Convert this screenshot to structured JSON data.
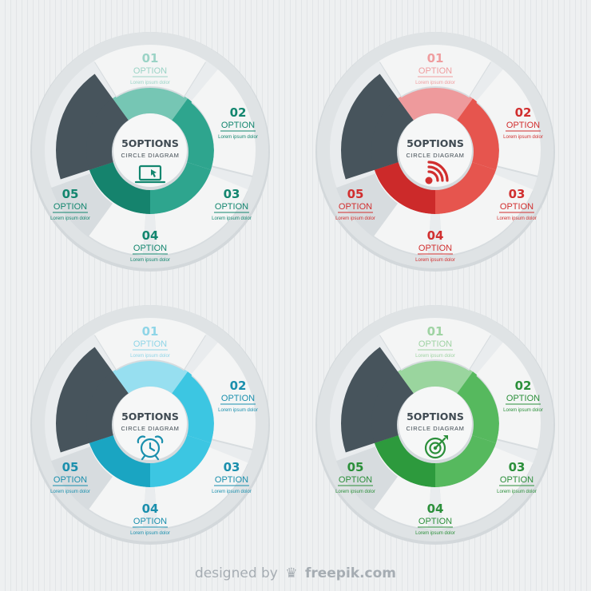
{
  "diagrams": [
    {
      "title": "5OPTIONS",
      "subtitle": "CIRCLE DIAGRAM",
      "icon": "laptop-icon",
      "colors": {
        "light": "#76c6b4",
        "mid": "#2ea58e",
        "dark": "#15836d",
        "text": "#13866f",
        "muted": "#9bd3c6"
      },
      "options": [
        {
          "number": "01",
          "label": "OPTION",
          "desc": "Lorem ipsum dolor",
          "style": "muted"
        },
        {
          "number": "02",
          "label": "OPTION",
          "desc": "Lorem ipsum dolor",
          "style": "normal"
        },
        {
          "number": "03",
          "label": "OPTION",
          "desc": "Lorem ipsum dolor",
          "style": "normal"
        },
        {
          "number": "04",
          "label": "OPTION",
          "desc": "Lorem ipsum dolor",
          "style": "normal"
        },
        {
          "number": "05",
          "label": "OPTION",
          "desc": "Lorem ipsum dolor",
          "style": "normal"
        }
      ]
    },
    {
      "title": "5OPTIONS",
      "subtitle": "CIRCLE DIAGRAM",
      "icon": "wifi-signal-icon",
      "colors": {
        "light": "#ee9a9c",
        "mid": "#e6554e",
        "dark": "#cc2a2a",
        "text": "#d12f2f",
        "muted": "#ef9d9f"
      },
      "options": [
        {
          "number": "01",
          "label": "OPTION",
          "desc": "Lorem ipsum dolor",
          "style": "muted"
        },
        {
          "number": "02",
          "label": "OPTION",
          "desc": "Lorem ipsum dolor",
          "style": "normal"
        },
        {
          "number": "03",
          "label": "OPTION",
          "desc": "Lorem ipsum dolor",
          "style": "normal"
        },
        {
          "number": "04",
          "label": "OPTION",
          "desc": "Lorem ipsum dolor",
          "style": "normal"
        },
        {
          "number": "05",
          "label": "OPTION",
          "desc": "Lorem ipsum dolor",
          "style": "normal"
        }
      ]
    },
    {
      "title": "5OPTIONS",
      "subtitle": "CIRCLE DIAGRAM",
      "icon": "alarm-clock-icon",
      "colors": {
        "light": "#97dff0",
        "mid": "#3cc6e2",
        "dark": "#1aa5c2",
        "text": "#1a8fad",
        "muted": "#8fd5e7"
      },
      "options": [
        {
          "number": "01",
          "label": "OPTION",
          "desc": "Lorem ipsum dolor",
          "style": "muted"
        },
        {
          "number": "02",
          "label": "OPTION",
          "desc": "Lorem ipsum dolor",
          "style": "normal"
        },
        {
          "number": "03",
          "label": "OPTION",
          "desc": "Lorem ipsum dolor",
          "style": "normal"
        },
        {
          "number": "04",
          "label": "OPTION",
          "desc": "Lorem ipsum dolor",
          "style": "normal"
        },
        {
          "number": "05",
          "label": "OPTION",
          "desc": "Lorem ipsum dolor",
          "style": "normal"
        }
      ]
    },
    {
      "title": "5OPTIONS",
      "subtitle": "CIRCLE DIAGRAM",
      "icon": "target-icon",
      "colors": {
        "light": "#9ad59e",
        "mid": "#56b95e",
        "dark": "#2d9a3d",
        "text": "#2b8f3a",
        "muted": "#9fd3a3"
      },
      "options": [
        {
          "number": "01",
          "label": "OPTION",
          "desc": "Lorem ipsum dolor",
          "style": "muted"
        },
        {
          "number": "02",
          "label": "OPTION",
          "desc": "Lorem ipsum dolor",
          "style": "normal"
        },
        {
          "number": "03",
          "label": "OPTION",
          "desc": "Lorem ipsum dolor",
          "style": "normal"
        },
        {
          "number": "04",
          "label": "OPTION",
          "desc": "Lorem ipsum dolor",
          "style": "normal"
        },
        {
          "number": "05",
          "label": "OPTION",
          "desc": "Lorem ipsum dolor",
          "style": "normal"
        }
      ]
    }
  ],
  "theme": {
    "outer_ring": "#dfe3e5",
    "dark_sector": "#47545c",
    "panel": "#f4f5f5",
    "title_text": "#3f4a52"
  },
  "credit": {
    "prefix": "designed by",
    "brand": "freepik.com"
  }
}
